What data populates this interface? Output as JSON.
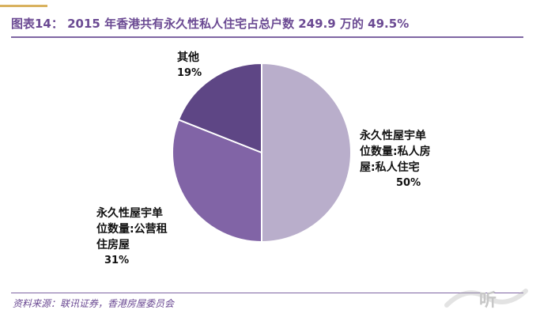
{
  "figure": {
    "title": "图表14： 2015 年香港共有永久性私人住宅占总户数 249.9 万的 49.5%",
    "source": "资料来源：联讯证券，香港房屋委员会"
  },
  "watermark": {
    "text": "听",
    "icon": "logo-wave-icon"
  },
  "chart_data": {
    "type": "pie",
    "slices": [
      {
        "label": "永久性屋宇单位数量:私人房屋:私人住宅",
        "lines": [
          "永久性屋宇单",
          "位数量:私人房",
          "屋:私人住宅"
        ],
        "percent_label": "50%",
        "value": 50,
        "color": "#b9aecb"
      },
      {
        "label": "永久性屋宇单位数量:公营租住房屋",
        "lines": [
          "永久性屋宇单",
          "位数量:公营租",
          "住房屋"
        ],
        "percent_label": "31%",
        "value": 31,
        "color": "#8164a6"
      },
      {
        "label": "其他",
        "lines": [
          "其他"
        ],
        "percent_label": "19%",
        "value": 19,
        "color": "#5e4685"
      }
    ]
  }
}
